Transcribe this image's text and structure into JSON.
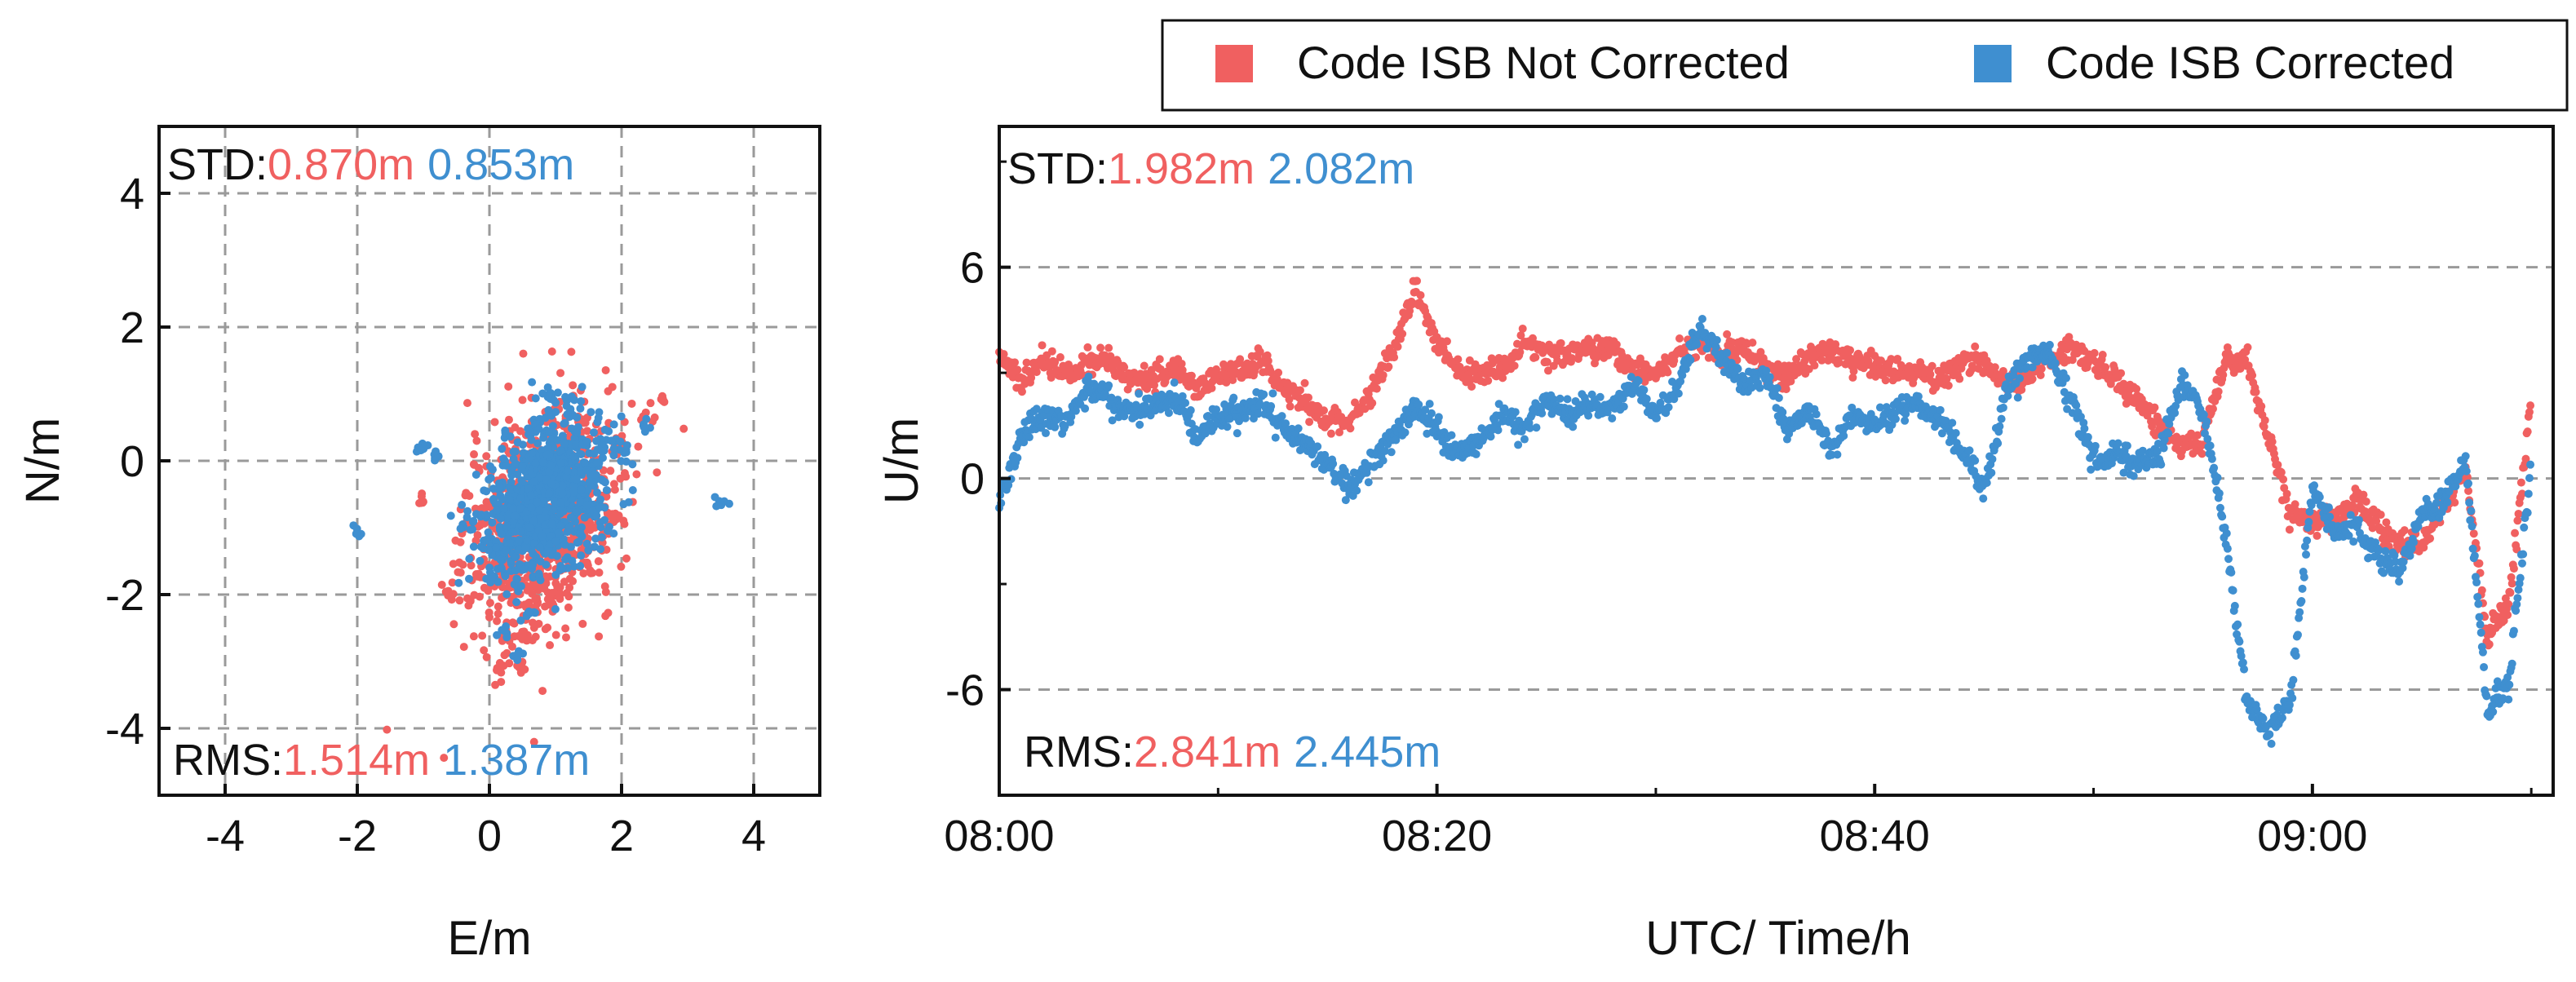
{
  "colors": {
    "not_corrected": "#f06060",
    "corrected": "#3f8fd0",
    "stat_label": "#111111"
  },
  "legend": {
    "not_corrected_label": "Code ISB Not Corrected",
    "corrected_label": "Code ISB Corrected"
  },
  "chart_data": [
    {
      "type": "scatter",
      "id": "horizontal",
      "xlabel": "E/m",
      "ylabel": "N/m",
      "xlim": [
        -5,
        5
      ],
      "ylim": [
        -5,
        5
      ],
      "xticks": [
        -4,
        -2,
        0,
        2,
        4
      ],
      "yticks": [
        -4,
        -2,
        0,
        2,
        4
      ],
      "grid": true,
      "stats": {
        "std_label": "STD:",
        "std_not_corrected": "0.870m",
        "std_corrected": "0.853m",
        "rms_label": "RMS:",
        "rms_not_corrected": "1.514m",
        "rms_corrected": "1.387m"
      },
      "series": [
        {
          "name": "Code ISB Not Corrected",
          "points": [
            [
              0.4,
              -1.2
            ],
            [
              0.8,
              -0.8
            ],
            [
              1.2,
              -0.4
            ],
            [
              1.6,
              -0.2
            ],
            [
              2.0,
              0.3
            ],
            [
              2.4,
              0.7
            ],
            [
              2.6,
              0.9
            ],
            [
              -0.6,
              -2.0
            ],
            [
              -0.2,
              -1.7
            ],
            [
              0.2,
              -1.5
            ],
            [
              0.3,
              -2.6
            ],
            [
              0.2,
              -3.0
            ],
            [
              0.5,
              -3.1
            ],
            [
              0.6,
              -2.2
            ],
            [
              -1.0,
              -0.6
            ],
            [
              -0.4,
              -1.0
            ],
            [
              1.8,
              -0.9
            ],
            [
              1.0,
              -2.0
            ],
            [
              0.7,
              -1.8
            ],
            [
              1.4,
              -1.2
            ]
          ],
          "cloud": {
            "cx": 0.8,
            "cy": -0.9,
            "sx": 0.55,
            "sy": 0.8
          }
        },
        {
          "name": "Code ISB Corrected",
          "points": [
            [
              -2.0,
              -1.1
            ],
            [
              3.5,
              -0.6
            ],
            [
              -0.8,
              0.1
            ],
            [
              -1.0,
              0.2
            ],
            [
              0.2,
              -2.6
            ],
            [
              0.4,
              -2.9
            ],
            [
              1.2,
              0.9
            ],
            [
              0.9,
              1.0
            ],
            [
              2.0,
              0.2
            ],
            [
              2.4,
              0.5
            ],
            [
              1.6,
              -0.3
            ],
            [
              0.0,
              -1.8
            ],
            [
              0.6,
              -2.3
            ],
            [
              -0.3,
              -0.9
            ],
            [
              1.8,
              -1.0
            ]
          ],
          "cloud": {
            "cx": 0.85,
            "cy": -0.55,
            "sx": 0.45,
            "sy": 0.55
          }
        }
      ]
    },
    {
      "type": "line",
      "id": "vertical",
      "xlabel": "UTC/ Time/h",
      "ylabel": "U/m",
      "xlim": [
        0,
        71
      ],
      "ylim": [
        -9,
        10
      ],
      "xticks": [
        0,
        20,
        40,
        60
      ],
      "xtick_labels": [
        "08:00",
        "08:20",
        "08:40",
        "09:00"
      ],
      "yticks": [
        -6,
        0,
        6
      ],
      "ytick_labels": [
        "-6",
        "0",
        "6"
      ],
      "grid": true,
      "stats": {
        "std_label": "STD:",
        "std_not_corrected": "1.982m",
        "std_corrected": "2.082m",
        "rms_label": "RMS:",
        "rms_not_corrected": "2.841m",
        "rms_corrected": "2.445m"
      },
      "series": [
        {
          "name": "Code ISB Not Corrected",
          "x": [
            0,
            1,
            2,
            3,
            4,
            5,
            6,
            7,
            8,
            9,
            10,
            11,
            12,
            13,
            14,
            15,
            16,
            17,
            18,
            19,
            20,
            21,
            22,
            23,
            24,
            25,
            26,
            27,
            28,
            29,
            30,
            31,
            32,
            33,
            34,
            35,
            36,
            37,
            38,
            39,
            40,
            41,
            42,
            43,
            44,
            45,
            46,
            47,
            48,
            49,
            50,
            51,
            52,
            53,
            54,
            55,
            56,
            57,
            58,
            59,
            60,
            61,
            62,
            63,
            64,
            65,
            66,
            67,
            68,
            69,
            70
          ],
          "y": [
            3.5,
            2.7,
            3.4,
            2.9,
            3.2,
            3.3,
            2.8,
            2.9,
            3.1,
            2.6,
            2.9,
            3.0,
            3.3,
            2.5,
            2.2,
            1.6,
            1.6,
            2.4,
            3.6,
            5.4,
            3.8,
            3.0,
            2.9,
            3.1,
            3.9,
            3.6,
            3.5,
            3.7,
            3.6,
            3.1,
            3.0,
            3.5,
            3.9,
            3.5,
            3.7,
            3.2,
            2.8,
            3.4,
            3.6,
            3.4,
            3.1,
            3.1,
            3.0,
            2.8,
            3.2,
            3.3,
            2.7,
            2.8,
            3.4,
            3.7,
            3.3,
            2.8,
            2.2,
            1.5,
            0.9,
            1.0,
            3.3,
            3.3,
            1.2,
            -1.0,
            -1.3,
            -1.1,
            -0.7,
            -1.3,
            -1.9,
            -1.9,
            -0.8,
            0.2,
            -4.5,
            -3.5,
            2.5
          ]
        },
        {
          "name": "Code ISB Corrected",
          "x": [
            0,
            1,
            2,
            3,
            4,
            5,
            6,
            7,
            8,
            9,
            10,
            11,
            12,
            13,
            14,
            15,
            16,
            17,
            18,
            19,
            20,
            21,
            22,
            23,
            24,
            25,
            26,
            27,
            28,
            29,
            30,
            31,
            32,
            33,
            34,
            35,
            36,
            37,
            38,
            39,
            40,
            41,
            42,
            43,
            44,
            45,
            46,
            47,
            48,
            49,
            50,
            51,
            52,
            53,
            54,
            55,
            56,
            57,
            58,
            59,
            60,
            61,
            62,
            63,
            64,
            65,
            66,
            67,
            68,
            69,
            70
          ],
          "y": [
            -0.6,
            1.2,
            1.8,
            1.6,
            2.5,
            2.3,
            1.8,
            2.0,
            2.4,
            1.2,
            1.8,
            1.9,
            2.2,
            1.4,
            1.0,
            0.4,
            -0.3,
            0.6,
            1.1,
            2.0,
            1.4,
            0.7,
            1.1,
            1.8,
            1.5,
            2.2,
            1.8,
            2.1,
            2.0,
            2.7,
            1.8,
            2.6,
            4.3,
            3.5,
            2.6,
            3.0,
            1.4,
            2.0,
            0.8,
            1.8,
            1.5,
            1.9,
            2.1,
            1.6,
            0.8,
            -0.4,
            2.5,
            3.4,
            3.6,
            2.1,
            0.5,
            0.7,
            0.4,
            0.6,
            2.7,
            1.9,
            -1.5,
            -6.3,
            -7.2,
            -6.3,
            -0.3,
            -1.5,
            -1.3,
            -2.2,
            -2.6,
            -1.0,
            -0.7,
            0.6,
            -6.6,
            -5.8,
            0.5
          ]
        }
      ]
    }
  ]
}
